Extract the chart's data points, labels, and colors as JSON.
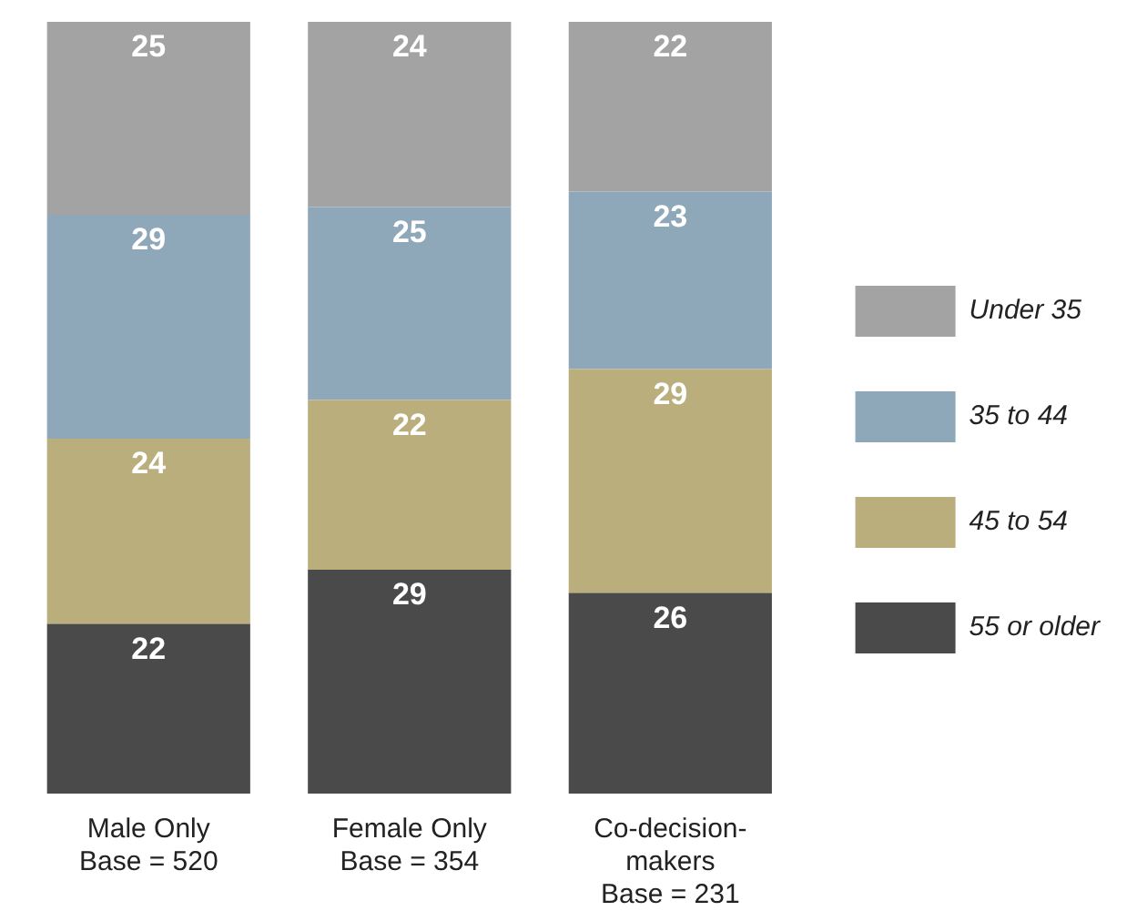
{
  "chart_data": {
    "type": "bar",
    "stacked": true,
    "data_labels": true,
    "legend": "right",
    "categories": [
      "Male Only\nBase = 520",
      "Female Only\nBase = 354",
      "Co-decision-\nmakers\nBase = 231"
    ],
    "series": [
      {
        "name": "55 or older",
        "color": "#4a4a4a",
        "values": [
          22,
          29,
          26
        ]
      },
      {
        "name": "45 to 54",
        "color": "#b9ae7c",
        "values": [
          24,
          22,
          29
        ]
      },
      {
        "name": "35 to 44",
        "color": "#8ea7b9",
        "values": [
          29,
          25,
          23
        ]
      },
      {
        "name": "Under 35",
        "color": "#a3a3a3",
        "values": [
          25,
          24,
          22
        ]
      }
    ]
  }
}
